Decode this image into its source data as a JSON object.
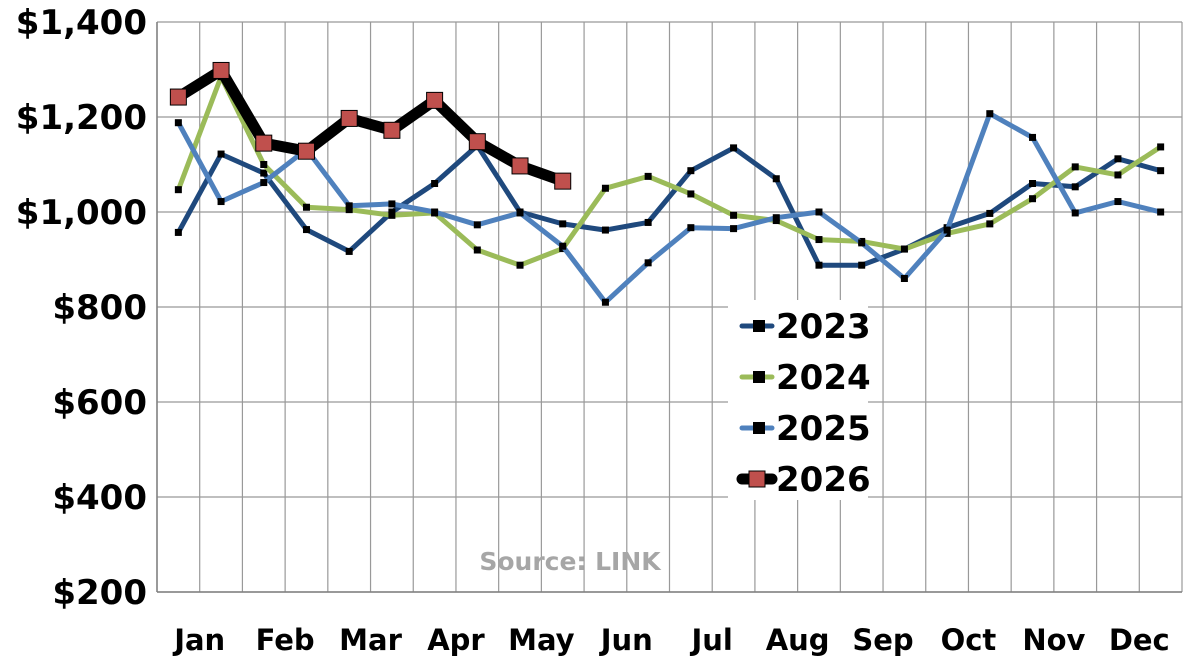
{
  "chart_data": {
    "type": "line",
    "title": "",
    "xlabel": "",
    "ylabel": "",
    "ylim": [
      200,
      1400
    ],
    "yticks": [
      200,
      400,
      600,
      800,
      1000,
      1200,
      1400
    ],
    "ytick_labels": [
      "$200",
      "$400",
      "$600",
      "$800",
      "$1,000",
      "$1,200",
      "$1,400"
    ],
    "month_labels": [
      "Jan",
      "Feb",
      "Mar",
      "Apr",
      "May",
      "Jun",
      "Jul",
      "Aug",
      "Sep",
      "Oct",
      "Nov",
      "Dec"
    ],
    "x_semimonthly_points": 24,
    "grid": true,
    "legend_position": "center-right",
    "annotation": "Source: LINK",
    "series": [
      {
        "name": "2023",
        "color": "#1f497d",
        "values": [
          957,
          1122,
          1082,
          963,
          917,
          1000,
          1060,
          1140,
          1000,
          975,
          962,
          978,
          1087,
          1135,
          1070,
          888,
          888,
          922,
          967,
          997,
          1060,
          1053,
          1112,
          1087
        ]
      },
      {
        "name": "2024",
        "color": "#9bbb59",
        "values": [
          1047,
          1285,
          1100,
          1010,
          1005,
          993,
          998,
          920,
          888,
          923,
          1050,
          1075,
          1038,
          993,
          982,
          942,
          938,
          922,
          955,
          975,
          1028,
          1095,
          1078,
          1137
        ]
      },
      {
        "name": "2025",
        "color": "#4f81bd",
        "values": [
          1188,
          1022,
          1062,
          1132,
          1013,
          1017,
          1000,
          973,
          998,
          928,
          810,
          893,
          967,
          965,
          988,
          1000,
          935,
          860,
          962,
          1207,
          1157,
          998,
          1022,
          1000
        ]
      },
      {
        "name": "2026",
        "color": "#000000",
        "marker_color": "#c0504d",
        "values": [
          1242,
          1298,
          1145,
          1128,
          1197,
          1172,
          1235,
          1148,
          1097,
          1065
        ]
      }
    ]
  }
}
